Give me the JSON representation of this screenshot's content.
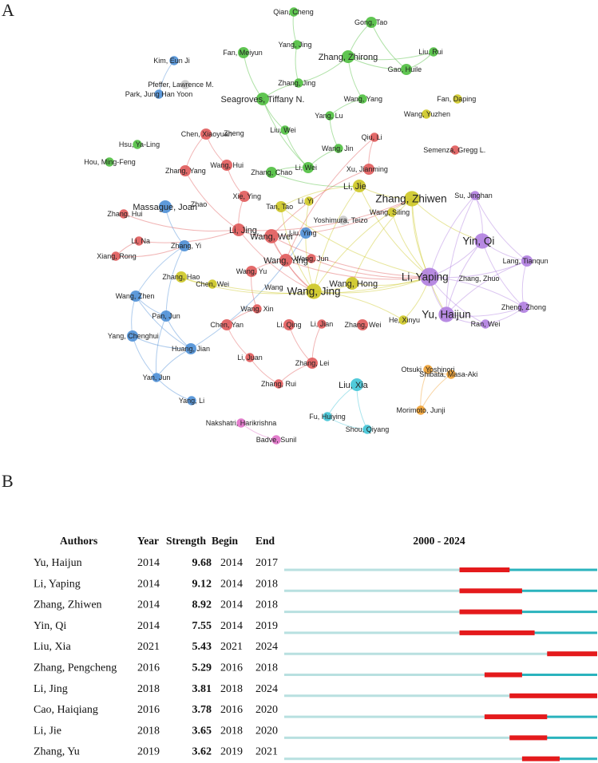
{
  "panel_a": {
    "label": "A"
  },
  "panel_b": {
    "label": "B"
  },
  "chart_data": [
    {
      "type": "network",
      "title": "Author co-authorship network",
      "cluster_colors": {
        "red": "#e05a5a",
        "green": "#4fbf3f",
        "yellow": "#cdc723",
        "purple": "#b07ee0",
        "blue": "#4d8fd6",
        "cyan": "#3fc4d6",
        "orange": "#f0a030",
        "pink": "#e070c8",
        "grey": "#c9c9c9"
      },
      "nodes": [
        {
          "name": "Qian, Cheng",
          "cluster": "green",
          "weight": 1
        },
        {
          "name": "Gong, Tao",
          "cluster": "green",
          "weight": 2
        },
        {
          "name": "Yang, Jing",
          "cluster": "green",
          "weight": 1
        },
        {
          "name": "Fan, Meiyun",
          "cluster": "green",
          "weight": 2
        },
        {
          "name": "Zhang, Zhirong",
          "cluster": "green",
          "weight": 3
        },
        {
          "name": "Liu, Rui",
          "cluster": "green",
          "weight": 1
        },
        {
          "name": "Kim, Eun Ji",
          "cluster": "blue",
          "weight": 1
        },
        {
          "name": "Gao, Huile",
          "cluster": "green",
          "weight": 2
        },
        {
          "name": "Zhang, Jing",
          "cluster": "green",
          "weight": 1
        },
        {
          "name": "Pfeffer, Lawrence M.",
          "cluster": "grey",
          "weight": 1
        },
        {
          "name": "Park, Jung Han Yoon",
          "cluster": "blue",
          "weight": 1
        },
        {
          "name": "Seagroves, Tiffany N.",
          "cluster": "green",
          "weight": 3
        },
        {
          "name": "Wang, Yang",
          "cluster": "green",
          "weight": 1
        },
        {
          "name": "Fan, Daping",
          "cluster": "yellow",
          "weight": 1
        },
        {
          "name": "Yang, Lu",
          "cluster": "green",
          "weight": 1
        },
        {
          "name": "Wang, Yuzhen",
          "cluster": "yellow",
          "weight": 1
        },
        {
          "name": "Liu, Wei",
          "cluster": "green",
          "weight": 1
        },
        {
          "name": "Chen, Xiaoyuan",
          "cluster": "red",
          "weight": 2
        },
        {
          "name": "Hsu, Ya-Ling",
          "cluster": "green",
          "weight": 1
        },
        {
          "name": "Qiu, Li",
          "cluster": "red",
          "weight": 1
        },
        {
          "name": "Semenza, Gregg L.",
          "cluster": "red",
          "weight": 1
        },
        {
          "name": "Wang, Jin",
          "cluster": "green",
          "weight": 1
        },
        {
          "name": "Hou, Ming-Feng",
          "cluster": "green",
          "weight": 1
        },
        {
          "name": "Li, Wei",
          "cluster": "green",
          "weight": 2
        },
        {
          "name": "Wang, Hui",
          "cluster": "red",
          "weight": 2
        },
        {
          "name": "Xu, Jianming",
          "cluster": "red",
          "weight": 2
        },
        {
          "name": "Zhang, Yang",
          "cluster": "red",
          "weight": 2
        },
        {
          "name": "Zhang, Chao",
          "cluster": "green",
          "weight": 2
        },
        {
          "name": "Li, Jie",
          "cluster": "yellow",
          "weight": 3
        },
        {
          "name": "Zhang, Zhiwen",
          "cluster": "yellow",
          "weight": 5
        },
        {
          "name": "Xie, Ying",
          "cluster": "red",
          "weight": 2
        },
        {
          "name": "Massague, Joan",
          "cluster": "blue",
          "weight": 3
        },
        {
          "name": "Li, Yi",
          "cluster": "yellow",
          "weight": 1
        },
        {
          "name": "Tan, Tao",
          "cluster": "yellow",
          "weight": 2
        },
        {
          "name": "Su, Jinghan",
          "cluster": "purple",
          "weight": 1
        },
        {
          "name": "Zhang, Hui",
          "cluster": "red",
          "weight": 1
        },
        {
          "name": "Wang, Siling",
          "cluster": "yellow",
          "weight": 1
        },
        {
          "name": "Yoshimura, Teizo",
          "cluster": "grey",
          "weight": 1
        },
        {
          "name": "Li, Jing",
          "cluster": "red",
          "weight": 3
        },
        {
          "name": "Wang, Wei",
          "cluster": "red",
          "weight": 4
        },
        {
          "name": "Liu, Ying",
          "cluster": "blue",
          "weight": 2
        },
        {
          "name": "Yin, Qi",
          "cluster": "purple",
          "weight": 5
        },
        {
          "name": "Li, Na",
          "cluster": "red",
          "weight": 1
        },
        {
          "name": "Zhang, Yi",
          "cluster": "blue",
          "weight": 2
        },
        {
          "name": "Lang, Tianqun",
          "cluster": "purple",
          "weight": 2
        },
        {
          "name": "Xiang, Rong",
          "cluster": "red",
          "weight": 1
        },
        {
          "name": "Wang, Ying",
          "cluster": "red",
          "weight": 3
        },
        {
          "name": "Wang, Jun",
          "cluster": "red",
          "weight": 1
        },
        {
          "name": "Wang, Yu",
          "cluster": "red",
          "weight": 2
        },
        {
          "name": "Li, Yaping",
          "cluster": "purple",
          "weight": 8
        },
        {
          "name": "Zhang, Hao",
          "cluster": "yellow",
          "weight": 2
        },
        {
          "name": "Chen, Wei",
          "cluster": "yellow",
          "weight": 1
        },
        {
          "name": "Wang, Jing",
          "cluster": "yellow",
          "weight": 5
        },
        {
          "name": "Wang, Hong",
          "cluster": "yellow",
          "weight": 3
        },
        {
          "name": "Wang, Zhen",
          "cluster": "blue",
          "weight": 2
        },
        {
          "name": "Zheng, Zhong",
          "cluster": "purple",
          "weight": 2
        },
        {
          "name": "Pan, Jun",
          "cluster": "blue",
          "weight": 2
        },
        {
          "name": "Wang, Xin",
          "cluster": "red",
          "weight": 1
        },
        {
          "name": "Yu, Haijun",
          "cluster": "purple",
          "weight": 5
        },
        {
          "name": "Yang, Chenghui",
          "cluster": "blue",
          "weight": 2
        },
        {
          "name": "Chen, Yan",
          "cluster": "red",
          "weight": 2
        },
        {
          "name": "Li, Qing",
          "cluster": "red",
          "weight": 2
        },
        {
          "name": "Li, Jian",
          "cluster": "red",
          "weight": 1
        },
        {
          "name": "Zhang, Wei",
          "cluster": "red",
          "weight": 2
        },
        {
          "name": "He, Xinyu",
          "cluster": "yellow",
          "weight": 1
        },
        {
          "name": "Ran, Wei",
          "cluster": "purple",
          "weight": 1
        },
        {
          "name": "Huang, Jian",
          "cluster": "blue",
          "weight": 2
        },
        {
          "name": "Li, Juan",
          "cluster": "red",
          "weight": 1
        },
        {
          "name": "Zhang, Lei",
          "cluster": "red",
          "weight": 2
        },
        {
          "name": "Otsuki, Yoshinori",
          "cluster": "orange",
          "weight": 1
        },
        {
          "name": "Shibata, Masa-Aki",
          "cluster": "orange",
          "weight": 1
        },
        {
          "name": "Yan, Jun",
          "cluster": "blue",
          "weight": 1
        },
        {
          "name": "Zhang, Rui",
          "cluster": "red",
          "weight": 1
        },
        {
          "name": "Liu, Xia",
          "cluster": "cyan",
          "weight": 3
        },
        {
          "name": "Morimoto, Junji",
          "cluster": "orange",
          "weight": 1
        },
        {
          "name": "Yang, Li",
          "cluster": "blue",
          "weight": 1
        },
        {
          "name": "Fu, Huiying",
          "cluster": "cyan",
          "weight": 1
        },
        {
          "name": "Nakshatri, Harikrishna",
          "cluster": "pink",
          "weight": 1
        },
        {
          "name": "Shou, Qiyang",
          "cluster": "cyan",
          "weight": 1
        },
        {
          "name": "Badve, Sunil",
          "cluster": "pink",
          "weight": 1
        }
      ],
      "extra_labels": [
        "Zheng",
        "Zhao",
        "Zhang, Zhuo",
        "Wang"
      ]
    },
    {
      "type": "burst-table",
      "title": "2000 - 2024",
      "headers": [
        "Authors",
        "Year",
        "Strength",
        "Begin",
        "End"
      ],
      "range": [
        2000,
        2024
      ],
      "colors": {
        "baseline": "#b8e0e0",
        "span": "#2ab3bd",
        "burst": "#e41a1c"
      },
      "rows": [
        {
          "author": "Yu, Haijun",
          "year": 2014,
          "strength": 9.68,
          "begin": 2014,
          "end": 2017
        },
        {
          "author": "Li, Yaping",
          "year": 2014,
          "strength": 9.12,
          "begin": 2014,
          "end": 2018
        },
        {
          "author": "Zhang, Zhiwen",
          "year": 2014,
          "strength": 8.92,
          "begin": 2014,
          "end": 2018
        },
        {
          "author": "Yin, Qi",
          "year": 2014,
          "strength": 7.55,
          "begin": 2014,
          "end": 2019
        },
        {
          "author": "Liu, Xia",
          "year": 2021,
          "strength": 5.43,
          "begin": 2021,
          "end": 2024
        },
        {
          "author": "Zhang, Pengcheng",
          "year": 2016,
          "strength": 5.29,
          "begin": 2016,
          "end": 2018
        },
        {
          "author": "Li, Jing",
          "year": 2018,
          "strength": 3.81,
          "begin": 2018,
          "end": 2024
        },
        {
          "author": "Cao, Haiqiang",
          "year": 2016,
          "strength": 3.78,
          "begin": 2016,
          "end": 2020
        },
        {
          "author": "Li, Jie",
          "year": 2018,
          "strength": 3.65,
          "begin": 2018,
          "end": 2020
        },
        {
          "author": "Zhang, Yu",
          "year": 2019,
          "strength": 3.62,
          "begin": 2019,
          "end": 2021
        }
      ]
    }
  ]
}
